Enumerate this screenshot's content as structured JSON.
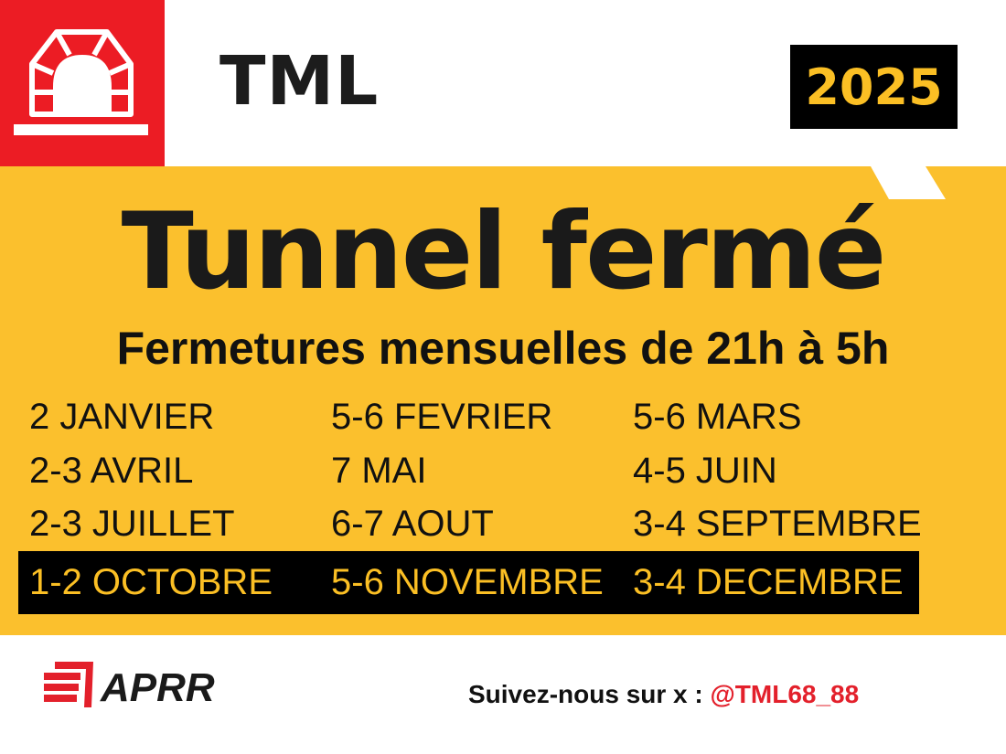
{
  "header": {
    "brand": "TML",
    "year": "2025",
    "colors": {
      "red": "#ec1c24",
      "yellow": "#fbc02d",
      "black": "#000000"
    }
  },
  "main": {
    "title": "Tunnel fermé",
    "subtitle": "Fermetures mensuelles de 21h à 5h",
    "dates": [
      [
        "2 JANVIER",
        "5-6 FEVRIER",
        "5-6 MARS"
      ],
      [
        "2-3 AVRIL",
        "7 MAI",
        "4-5 JUIN"
      ],
      [
        "2-3 JUILLET",
        "6-7 AOUT",
        "3-4 SEPTEMBRE"
      ],
      [
        "1-2 OCTOBRE",
        "5-6 NOVEMBRE",
        "3-4 DECEMBRE"
      ]
    ]
  },
  "footer": {
    "partner_logo": "APRR",
    "follow_label": "Suivez-nous sur x : ",
    "handle": "@TML68_88"
  }
}
